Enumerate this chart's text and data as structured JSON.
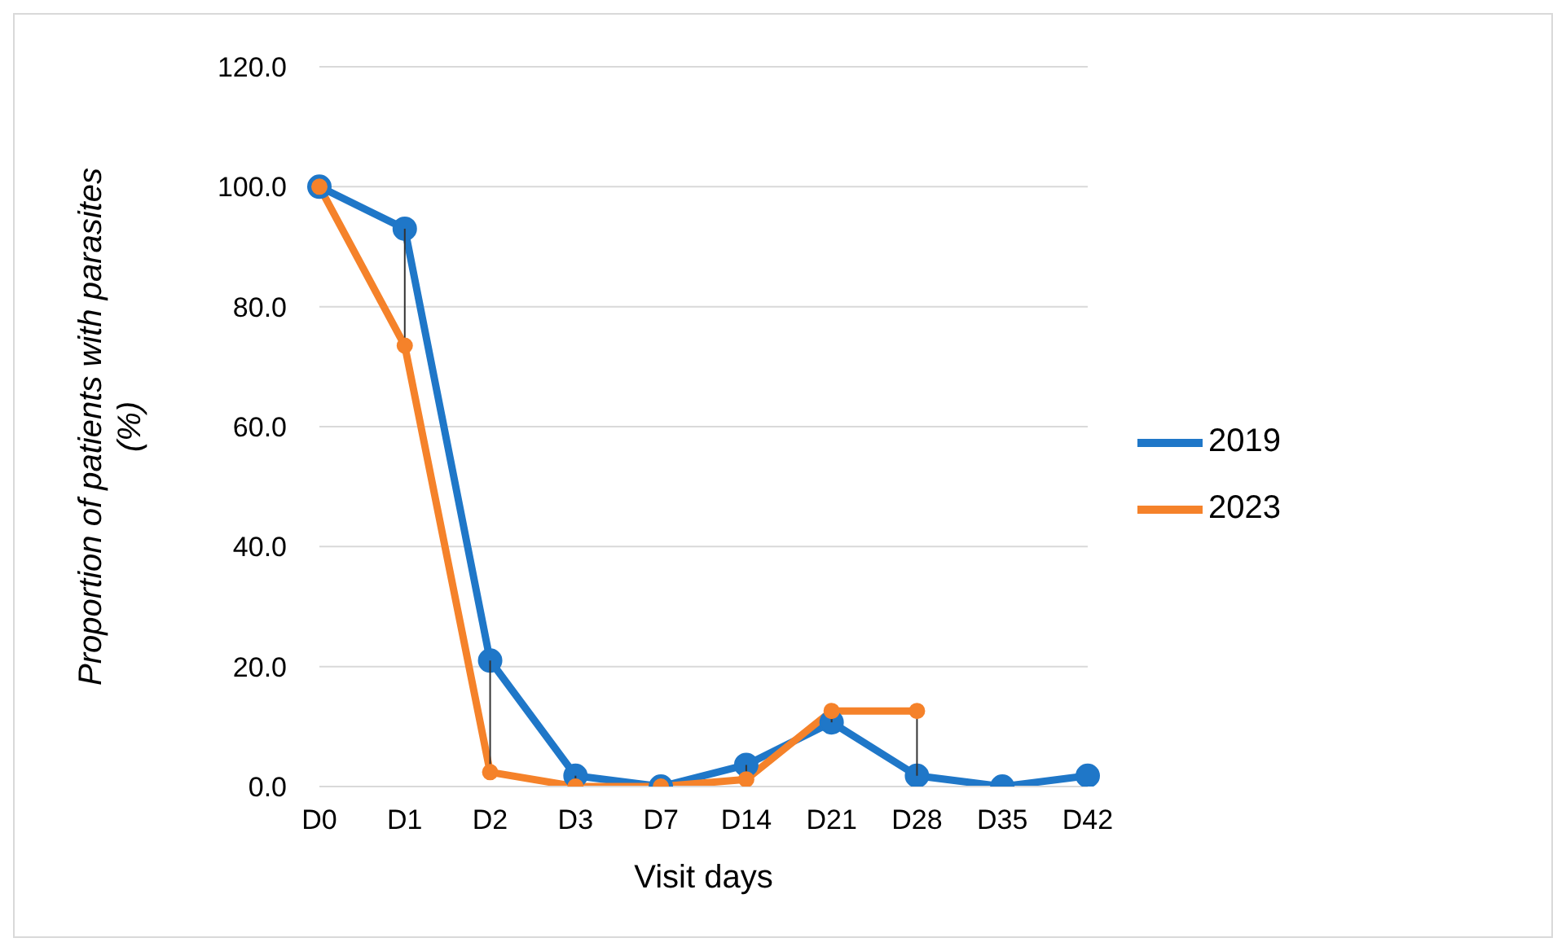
{
  "chart_data": {
    "type": "line",
    "xlabel": "Visit days",
    "ylabel": "Proportion of patients with parasites (%)",
    "categories": [
      "D0",
      "D1",
      "D2",
      "D3",
      "D7",
      "D14",
      "D21",
      "D28",
      "D35",
      "D42"
    ],
    "series": [
      {
        "name": "2019",
        "color": "#1f77c8",
        "values": [
          100,
          93,
          21,
          1.8,
          0,
          3.6,
          10.7,
          1.8,
          0,
          1.8
        ]
      },
      {
        "name": "2023",
        "color": "#f5822a",
        "values": [
          100,
          73.5,
          2.4,
          0,
          0,
          1.2,
          12.6,
          12.6,
          null,
          null
        ]
      }
    ],
    "ylim": [
      0,
      120
    ],
    "yticks": [
      {
        "value": 0,
        "label": "0.0"
      },
      {
        "value": 20,
        "label": "20.0"
      },
      {
        "value": 40,
        "label": "40.0"
      },
      {
        "value": 60,
        "label": "60.0"
      },
      {
        "value": 80,
        "label": "80.0"
      },
      {
        "value": 100,
        "label": "100.0"
      },
      {
        "value": 120,
        "label": "120.0"
      }
    ],
    "grid": "y",
    "legend": "right",
    "marker": "circle",
    "line_style": "solid"
  }
}
